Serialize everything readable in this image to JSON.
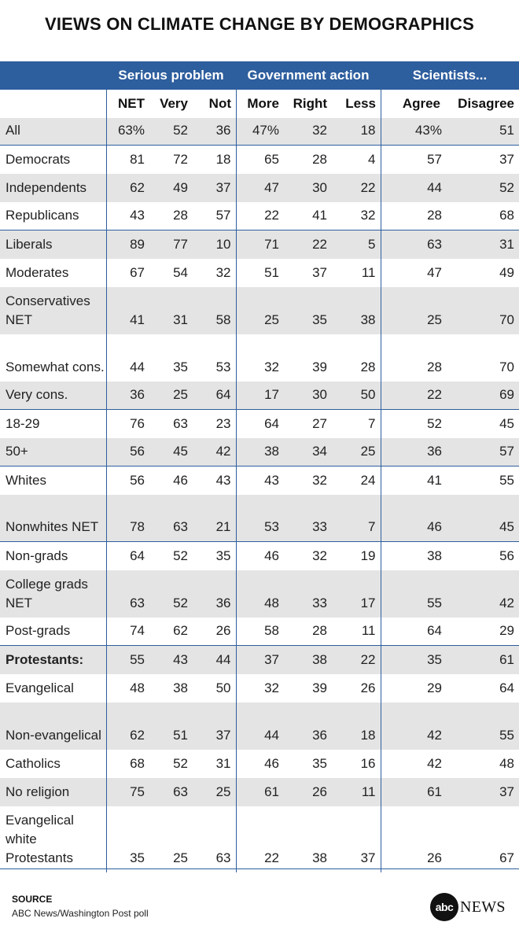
{
  "title": "VIEWS ON CLIMATE CHANGE BY DEMOGRAPHICS",
  "groups": [
    "Serious problem",
    "Government action",
    "Scientists..."
  ],
  "columns": [
    "NET",
    "Very",
    "Not",
    "More",
    "Right",
    "Less",
    "Agree",
    "Disagree"
  ],
  "rows": [
    {
      "label": "All",
      "values": [
        "63%",
        "52",
        "36",
        "47%",
        "32",
        "18",
        "43%",
        "51"
      ]
    },
    {
      "label": "Democrats",
      "values": [
        "81",
        "72",
        "18",
        "65",
        "28",
        "4",
        "57",
        "37"
      ]
    },
    {
      "label": "Independents",
      "values": [
        "62",
        "49",
        "37",
        "47",
        "30",
        "22",
        "44",
        "52"
      ]
    },
    {
      "label": "Republicans",
      "values": [
        "43",
        "28",
        "57",
        "22",
        "41",
        "32",
        "28",
        "68"
      ]
    },
    {
      "label": "Liberals",
      "values": [
        "89",
        "77",
        "10",
        "71",
        "22",
        "5",
        "63",
        "31"
      ]
    },
    {
      "label": "Moderates",
      "values": [
        "67",
        "54",
        "32",
        "51",
        "37",
        "11",
        "47",
        "49"
      ]
    },
    {
      "label": "Conservatives NET",
      "values": [
        "41",
        "31",
        "58",
        "25",
        "35",
        "38",
        "25",
        "70"
      ]
    },
    {
      "label": "Somewhat cons.",
      "values": [
        "44",
        "35",
        "53",
        "32",
        "39",
        "28",
        "28",
        "70"
      ]
    },
    {
      "label": "Very cons.",
      "values": [
        "36",
        "25",
        "64",
        "17",
        "30",
        "50",
        "22",
        "69"
      ]
    },
    {
      "label": "18-29",
      "values": [
        "76",
        "63",
        "23",
        "64",
        "27",
        "7",
        "52",
        "45"
      ]
    },
    {
      "label": "50+",
      "values": [
        "56",
        "45",
        "42",
        "38",
        "34",
        "25",
        "36",
        "57"
      ]
    },
    {
      "label": "Whites",
      "values": [
        "56",
        "46",
        "43",
        "43",
        "32",
        "24",
        "41",
        "55"
      ]
    },
    {
      "label": "Nonwhites NET",
      "values": [
        "78",
        "63",
        "21",
        "53",
        "33",
        "7",
        "46",
        "45"
      ]
    },
    {
      "label": "Non-grads",
      "values": [
        "64",
        "52",
        "35",
        "46",
        "32",
        "19",
        "38",
        "56"
      ]
    },
    {
      "label": "College grads NET",
      "values": [
        "63",
        "52",
        "36",
        "48",
        "33",
        "17",
        "55",
        "42"
      ]
    },
    {
      "label": "Post-grads",
      "values": [
        "74",
        "62",
        "26",
        "58",
        "28",
        "11",
        "64",
        "29"
      ]
    },
    {
      "label": "Protestants:",
      "values": [
        "55",
        "43",
        "44",
        "37",
        "38",
        "22",
        "35",
        "61"
      ]
    },
    {
      "label": "Evangelical",
      "values": [
        "48",
        "38",
        "50",
        "32",
        "39",
        "26",
        "29",
        "64"
      ]
    },
    {
      "label": "Non-evangelical",
      "values": [
        "62",
        "51",
        "37",
        "44",
        "36",
        "18",
        "42",
        "55"
      ]
    },
    {
      "label": "Catholics",
      "values": [
        "68",
        "52",
        "31",
        "46",
        "35",
        "16",
        "42",
        "48"
      ]
    },
    {
      "label": "No religion",
      "values": [
        "75",
        "63",
        "25",
        "61",
        "26",
        "11",
        "61",
        "37"
      ]
    },
    {
      "label": "Evangelical white Protestants",
      "values": [
        "35",
        "25",
        "63",
        "22",
        "38",
        "37",
        "26",
        "67"
      ]
    }
  ],
  "source_label": "SOURCE",
  "source_text": "ABC News/Washington Post poll",
  "logo": {
    "circle_text": "abc",
    "word": "NEWS"
  },
  "colors": {
    "header_blue": "#2d5e9e",
    "shade_gray": "#e4e4e4"
  }
}
